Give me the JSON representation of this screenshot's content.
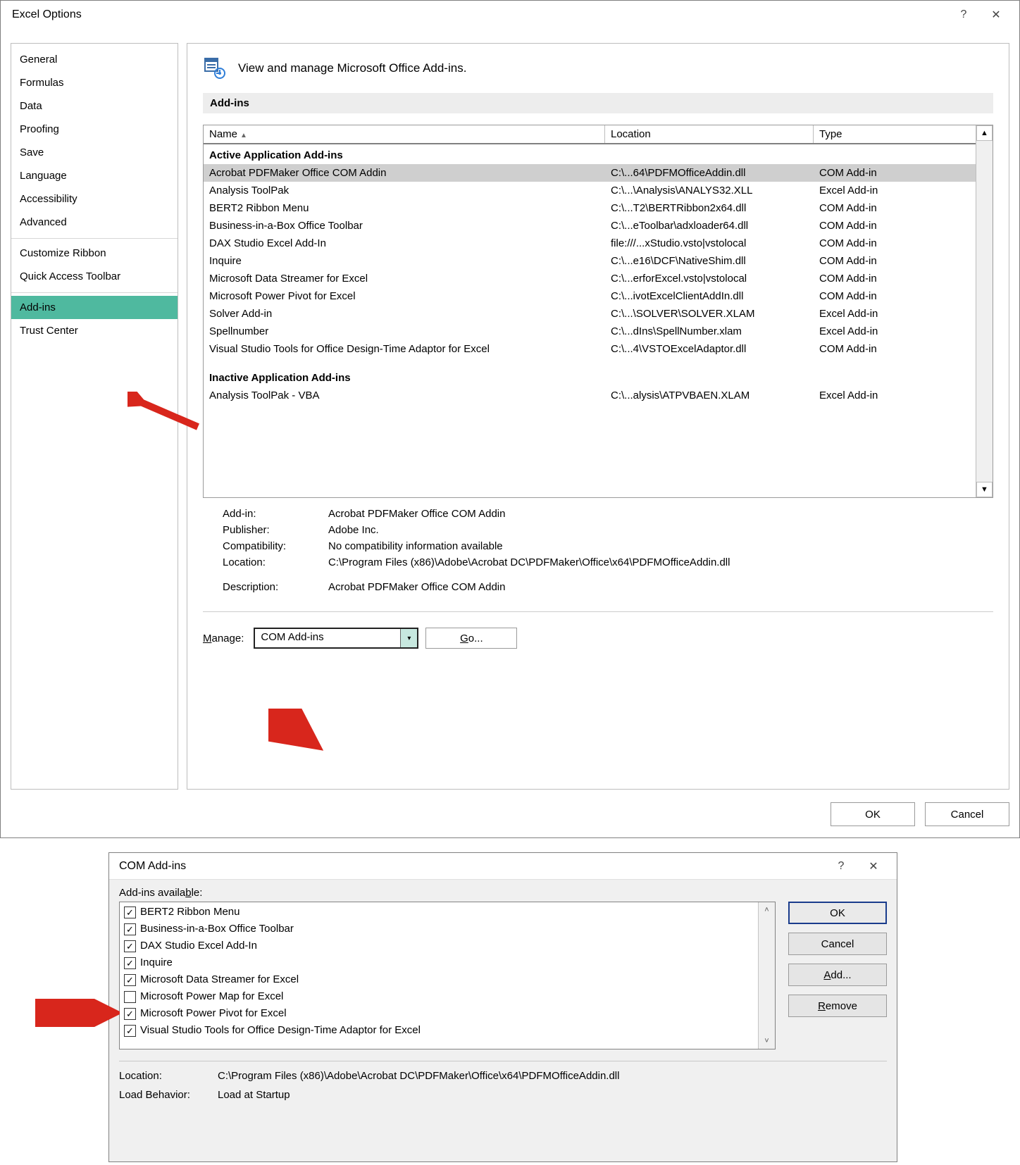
{
  "colors": {
    "sidebar_selected_bg": "#4fb99f",
    "row_selected_bg": "#cfcfcf",
    "combo_btn_bg": "#c7e8df",
    "arrow_color": "#d8261c"
  },
  "dialog1": {
    "title": "Excel Options",
    "help_icon": "?",
    "close_icon": "✕",
    "header_text": "View and manage Microsoft Office Add-ins.",
    "section_title": "Add-ins",
    "sidebar": {
      "groups": [
        [
          "General",
          "Formulas",
          "Data",
          "Proofing",
          "Save",
          "Language",
          "Accessibility",
          "Advanced"
        ],
        [
          "Customize Ribbon",
          "Quick Access Toolbar"
        ],
        [
          "Add-ins",
          "Trust Center"
        ]
      ],
      "selected": "Add-ins"
    },
    "table": {
      "columns": {
        "name": "Name",
        "location": "Location",
        "type": "Type"
      },
      "active_header": "Active Application Add-ins",
      "inactive_header": "Inactive Application Add-ins",
      "active_rows": [
        {
          "name": "Acrobat PDFMaker Office COM Addin",
          "location": "C:\\...64\\PDFMOfficeAddin.dll",
          "type": "COM Add-in",
          "selected": true
        },
        {
          "name": "Analysis ToolPak",
          "location": "C:\\...\\Analysis\\ANALYS32.XLL",
          "type": "Excel Add-in"
        },
        {
          "name": "BERT2 Ribbon Menu",
          "location": "C:\\...T2\\BERTRibbon2x64.dll",
          "type": "COM Add-in"
        },
        {
          "name": "Business-in-a-Box Office Toolbar",
          "location": "C:\\...eToolbar\\adxloader64.dll",
          "type": "COM Add-in"
        },
        {
          "name": "DAX Studio Excel Add-In",
          "location": "file:///...xStudio.vsto|vstolocal",
          "type": "COM Add-in"
        },
        {
          "name": "Inquire",
          "location": "C:\\...e16\\DCF\\NativeShim.dll",
          "type": "COM Add-in"
        },
        {
          "name": "Microsoft Data Streamer for Excel",
          "location": "C:\\...erforExcel.vsto|vstolocal",
          "type": "COM Add-in"
        },
        {
          "name": "Microsoft Power Pivot for Excel",
          "location": "C:\\...ivotExcelClientAddIn.dll",
          "type": "COM Add-in"
        },
        {
          "name": "Solver Add-in",
          "location": "C:\\...\\SOLVER\\SOLVER.XLAM",
          "type": "Excel Add-in"
        },
        {
          "name": "Spellnumber",
          "location": "C:\\...dIns\\SpellNumber.xlam",
          "type": "Excel Add-in"
        },
        {
          "name": "Visual Studio Tools for Office Design-Time Adaptor for Excel",
          "location": "C:\\...4\\VSTOExcelAdaptor.dll",
          "type": "COM Add-in"
        }
      ],
      "inactive_rows": [
        {
          "name": "Analysis ToolPak - VBA",
          "location": "C:\\...alysis\\ATPVBAEN.XLAM",
          "type": "Excel Add-in"
        }
      ]
    },
    "details": {
      "labels": {
        "addin": "Add-in:",
        "publisher": "Publisher:",
        "compat": "Compatibility:",
        "location": "Location:",
        "desc": "Description:"
      },
      "addin": "Acrobat PDFMaker Office COM Addin",
      "publisher": "Adobe Inc.",
      "compat": "No compatibility information available",
      "location": "C:\\Program Files (x86)\\Adobe\\Acrobat DC\\PDFMaker\\Office\\x64\\PDFMOfficeAddin.dll",
      "desc": "Acrobat PDFMaker Office COM Addin"
    },
    "manage": {
      "label": "Manage:",
      "selected": "COM Add-ins",
      "go_label": "Go..."
    },
    "buttons": {
      "ok": "OK",
      "cancel": "Cancel"
    }
  },
  "dialog2": {
    "title": "COM Add-ins",
    "help_icon": "?",
    "close_icon": "✕",
    "available_label": "Add-ins available:",
    "items": [
      {
        "checked": true,
        "label": "BERT2 Ribbon Menu"
      },
      {
        "checked": true,
        "label": "Business-in-a-Box Office Toolbar"
      },
      {
        "checked": true,
        "label": "DAX Studio Excel Add-In"
      },
      {
        "checked": true,
        "label": "Inquire"
      },
      {
        "checked": true,
        "label": "Microsoft Data Streamer for Excel"
      },
      {
        "checked": false,
        "label": "Microsoft Power Map for Excel"
      },
      {
        "checked": true,
        "label": "Microsoft Power Pivot for Excel"
      },
      {
        "checked": true,
        "label": "Visual Studio Tools for Office Design-Time Adaptor for Excel"
      }
    ],
    "buttons": {
      "ok": "OK",
      "cancel": "Cancel",
      "add": "Add...",
      "remove": "Remove"
    },
    "details": {
      "labels": {
        "location": "Location:",
        "load": "Load Behavior:"
      },
      "location": "C:\\Program Files (x86)\\Adobe\\Acrobat DC\\PDFMaker\\Office\\x64\\PDFMOfficeAddin.dll",
      "load": "Load at Startup"
    }
  }
}
